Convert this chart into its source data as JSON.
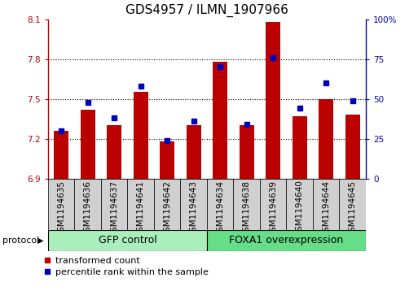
{
  "title": "GDS4957 / ILMN_1907966",
  "samples": [
    "GSM1194635",
    "GSM1194636",
    "GSM1194637",
    "GSM1194641",
    "GSM1194642",
    "GSM1194643",
    "GSM1194634",
    "GSM1194638",
    "GSM1194639",
    "GSM1194640",
    "GSM1194644",
    "GSM1194645"
  ],
  "red_values": [
    7.26,
    7.42,
    7.3,
    7.55,
    7.18,
    7.3,
    7.78,
    7.3,
    8.08,
    7.37,
    7.5,
    7.38
  ],
  "blue_values_pct": [
    30,
    48,
    38,
    58,
    24,
    36,
    70,
    34,
    76,
    44,
    60,
    49
  ],
  "ylim": [
    6.9,
    8.1
  ],
  "yticks": [
    6.9,
    7.2,
    7.5,
    7.8,
    8.1
  ],
  "y2lim": [
    0,
    100
  ],
  "y2ticks": [
    0,
    25,
    50,
    75,
    100
  ],
  "y2labels": [
    "0",
    "25",
    "50",
    "75",
    "100%"
  ],
  "gfp_count": 6,
  "foxa1_count": 6,
  "group1_label": "GFP control",
  "group2_label": "FOXA1 overexpression",
  "protocol_label": "protocol",
  "legend_red": "transformed count",
  "legend_blue": "percentile rank within the sample",
  "red_color": "#bb0000",
  "blue_color": "#0000bb",
  "bar_width": 0.55,
  "bg_color": "#d0d0d0",
  "gfp_color": "#aaeebb",
  "foxa1_color": "#66dd88",
  "title_fontsize": 11,
  "tick_fontsize": 7.5,
  "label_fontsize": 8,
  "group_fontsize": 9,
  "dotted_lines": [
    7.2,
    7.5,
    7.8
  ]
}
